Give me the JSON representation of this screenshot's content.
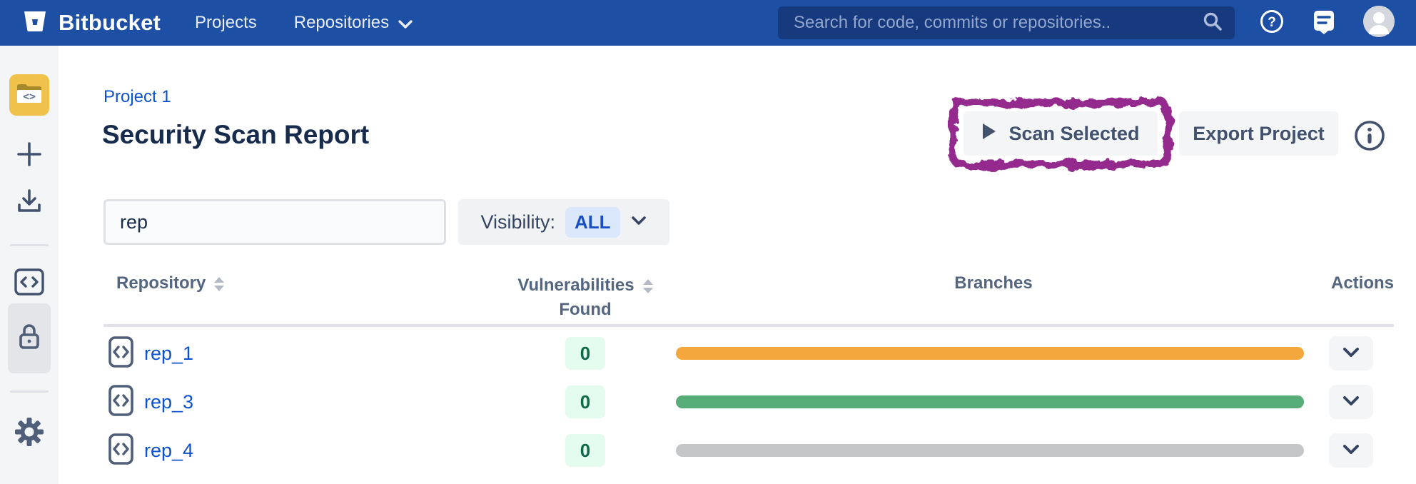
{
  "navbar": {
    "brand": "Bitbucket",
    "items": [
      {
        "label": "Projects",
        "has_chevron": false
      },
      {
        "label": "Repositories",
        "has_chevron": true
      }
    ],
    "search": {
      "placeholder": "Search for code, commits or repositories..",
      "value": ""
    },
    "icons": [
      "bitbucket-logo",
      "search-icon",
      "help-icon",
      "feedback-icon",
      "avatar"
    ],
    "colors": {
      "bg": "#1d4fa4",
      "search_bg": "#163a7d"
    }
  },
  "sidebar": {
    "items": [
      {
        "name": "project-avatar",
        "icon": "folder-code-icon",
        "color": "#f0c24b"
      },
      {
        "name": "create",
        "icon": "plus-icon"
      },
      {
        "name": "clone",
        "icon": "download-icon"
      },
      {
        "name": "source",
        "icon": "code-icon"
      },
      {
        "name": "security",
        "icon": "lock-icon",
        "selected": true
      },
      {
        "name": "settings",
        "icon": "gear-icon"
      }
    ]
  },
  "header": {
    "breadcrumb": "Project 1",
    "title": "Security Scan Report",
    "scan_button_label": "Scan Selected",
    "export_button_label": "Export Project",
    "info_icon": "info-icon",
    "annotation_color": "#942b8d"
  },
  "filters": {
    "repo_filter_value": "rep",
    "visibility_label": "Visibility:",
    "visibility_value": "ALL"
  },
  "table": {
    "headers": {
      "repository": "Repository",
      "vulnerabilities_line1": "Vulnerabilities",
      "vulnerabilities_line2": "Found",
      "branches": "Branches",
      "actions": "Actions"
    },
    "rows": [
      {
        "name": "rep_1",
        "vulnerabilities": "0",
        "branch_color": "#f3a73c"
      },
      {
        "name": "rep_3",
        "vulnerabilities": "0",
        "branch_color": "#57ad77"
      },
      {
        "name": "rep_4",
        "vulnerabilities": "0",
        "branch_color": "#c5c6c8"
      }
    ],
    "status_colors": {
      "warning": "#f3a73c",
      "ok": "#57ad77",
      "none": "#c5c6c8",
      "badge_bg": "#e3fcef",
      "badge_text": "#11684a"
    }
  }
}
